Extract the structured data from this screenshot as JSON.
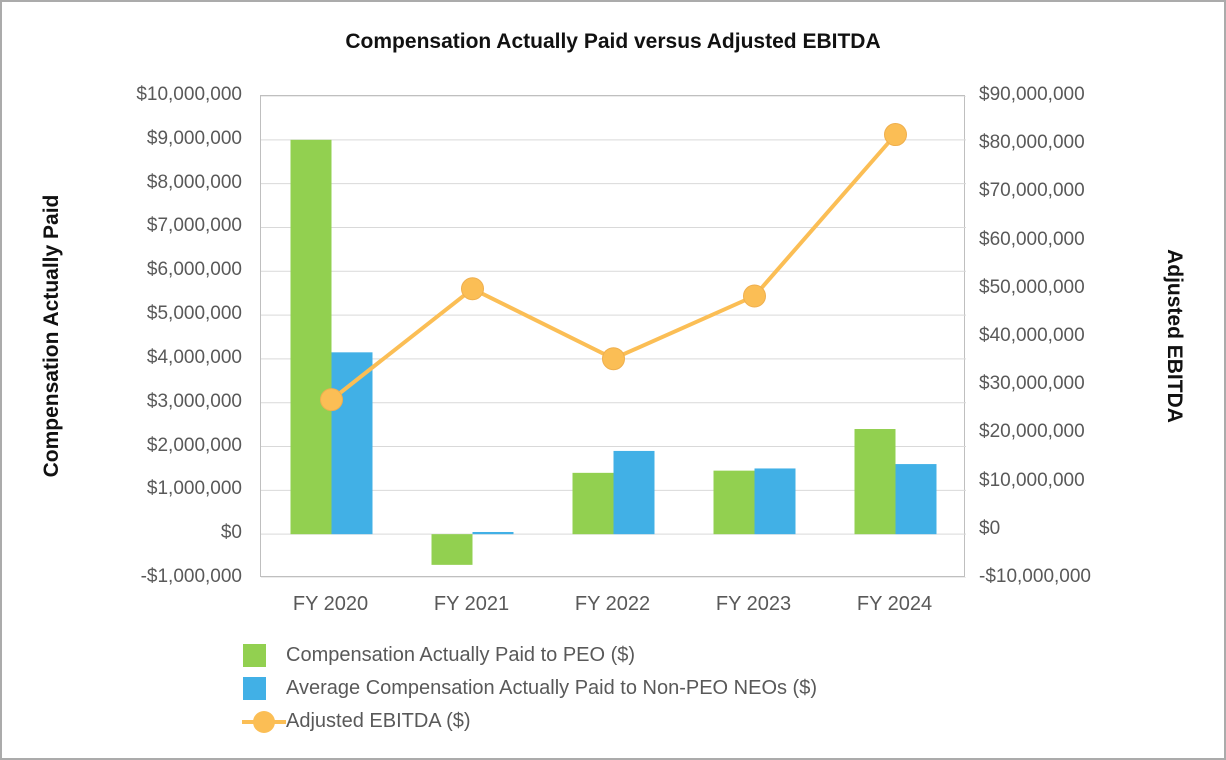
{
  "title": "Compensation Actually Paid versus Adjusted EBITDA",
  "chart_data": {
    "type": "bar+line combo",
    "title": "Compensation Actually Paid versus Adjusted EBITDA",
    "categories": [
      "FY 2020",
      "FY 2021",
      "FY 2022",
      "FY 2023",
      "FY 2024"
    ],
    "series": [
      {
        "name": "Compensation Actually Paid to PEO ($)",
        "type": "bar",
        "axis": "left",
        "color": "#92D050",
        "values": [
          9000000,
          -700000,
          1400000,
          1450000,
          2400000
        ]
      },
      {
        "name": "Average Compensation Actually Paid to Non-PEO NEOs ($)",
        "type": "bar",
        "axis": "left",
        "color": "#41B0E6",
        "values": [
          4150000,
          50000,
          1900000,
          1500000,
          1600000
        ]
      },
      {
        "name": "Adjusted EBITDA ($)",
        "type": "line",
        "axis": "right",
        "color": "#FBBE55",
        "values": [
          27000000,
          50000000,
          35500000,
          48500000,
          82000000
        ]
      }
    ],
    "left_axis": {
      "label": "Compensation Actually Paid",
      "min": -1000000,
      "max": 10000000,
      "step": 1000000
    },
    "right_axis": {
      "label": "Adjusted EBITDA",
      "min": -10000000,
      "max": 90000000,
      "step": 10000000
    },
    "grid": true,
    "gridline_color": "#D9D9D9",
    "tick_format": "USD with thousands separators, e.g. $10,000,000 and -$1,000,000",
    "legend_position": "bottom-left"
  }
}
